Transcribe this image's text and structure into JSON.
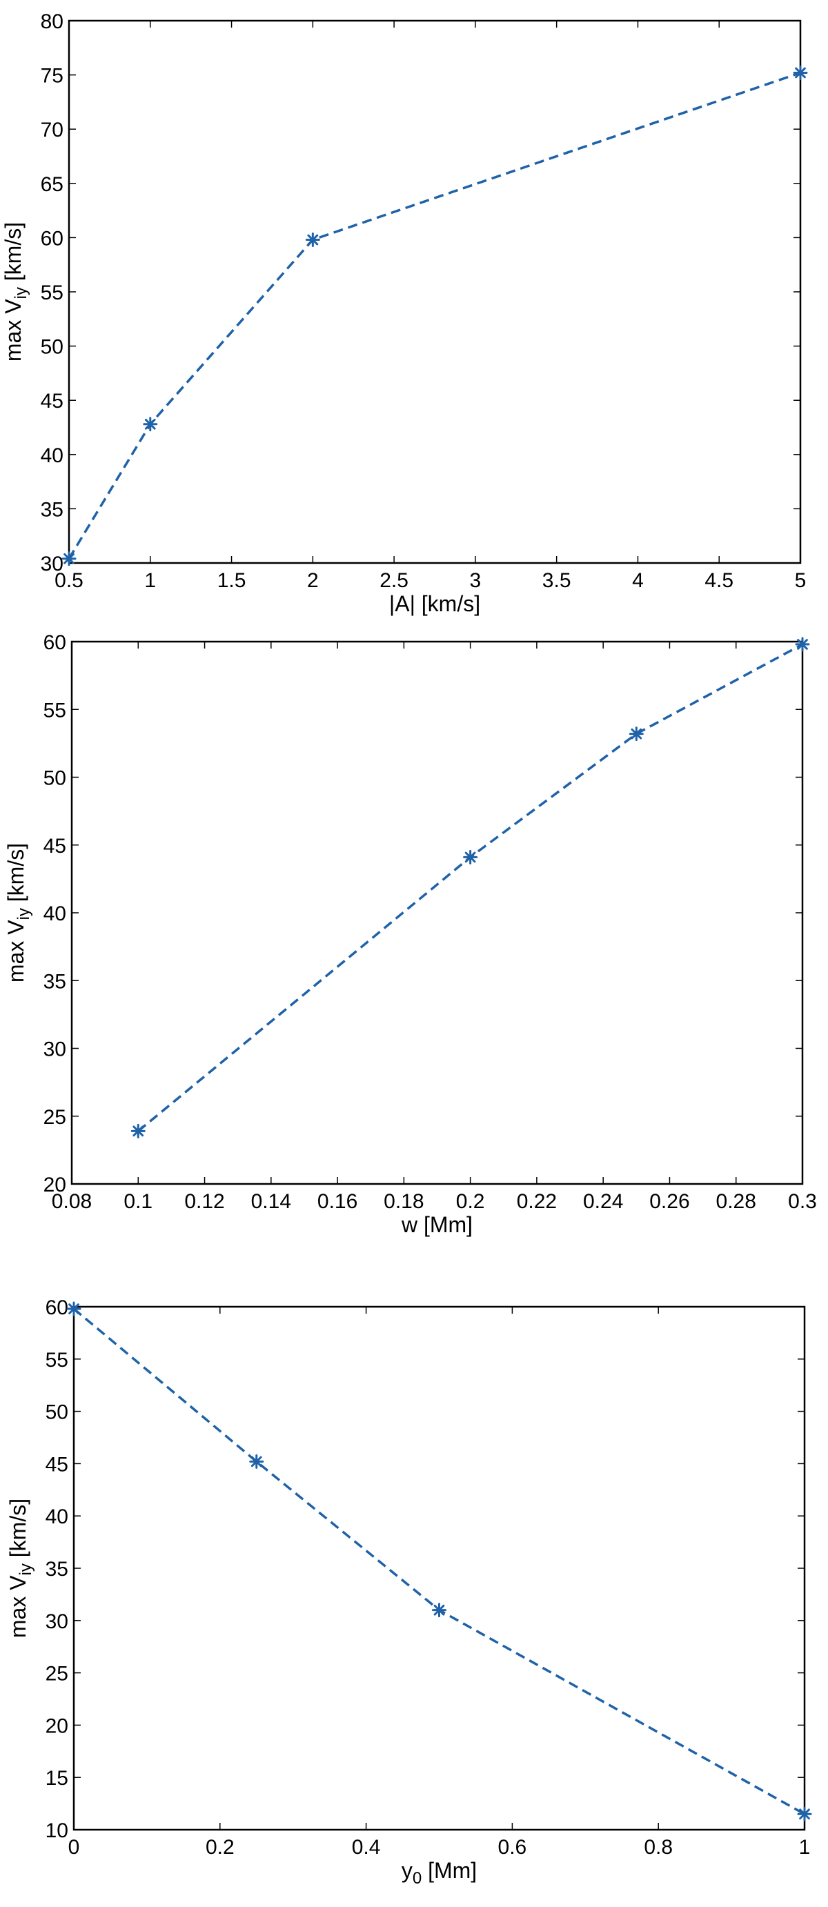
{
  "chart_data": [
    {
      "type": "line",
      "title": "",
      "xlabel": "|A| [km/s]",
      "ylabel_parts": [
        "max V",
        "iy",
        " [km/s]"
      ],
      "xlim": [
        0.5,
        5
      ],
      "ylim": [
        30,
        80
      ],
      "xticks": [
        0.5,
        1,
        1.5,
        2,
        2.5,
        3,
        3.5,
        4,
        4.5,
        5
      ],
      "yticks": [
        30,
        35,
        40,
        45,
        50,
        55,
        60,
        65,
        70,
        75,
        80
      ],
      "grid": false,
      "series": [
        {
          "x": [
            0.5,
            1,
            2,
            5
          ],
          "y": [
            30.4,
            42.8,
            59.8,
            75.2
          ],
          "color": "#1f62a8",
          "marker": "asterisk",
          "linestyle": "dashed"
        }
      ]
    },
    {
      "type": "line",
      "title": "",
      "xlabel": "w [Mm]",
      "ylabel_parts": [
        "max V",
        "iy",
        " [km/s]"
      ],
      "xlim": [
        0.08,
        0.3
      ],
      "ylim": [
        20,
        60
      ],
      "xticks": [
        0.08,
        0.1,
        0.12,
        0.14,
        0.16,
        0.18,
        0.2,
        0.22,
        0.24,
        0.26,
        0.28,
        0.3
      ],
      "yticks": [
        20,
        25,
        30,
        35,
        40,
        45,
        50,
        55,
        60
      ],
      "grid": false,
      "series": [
        {
          "x": [
            0.1,
            0.2,
            0.25,
            0.3
          ],
          "y": [
            23.9,
            44.1,
            53.2,
            59.8
          ],
          "color": "#1f62a8",
          "marker": "asterisk",
          "linestyle": "dashed"
        }
      ]
    },
    {
      "type": "line",
      "title": "",
      "xlabel_parts": [
        "y",
        "0",
        " [Mm]"
      ],
      "ylabel_parts": [
        "max V",
        "iy",
        " [km/s]"
      ],
      "xlim": [
        0,
        1
      ],
      "ylim": [
        10,
        60
      ],
      "xticks": [
        0,
        0.2,
        0.4,
        0.6,
        0.8,
        1
      ],
      "yticks": [
        10,
        15,
        20,
        25,
        30,
        35,
        40,
        45,
        50,
        55,
        60
      ],
      "grid": false,
      "series": [
        {
          "x": [
            0,
            0.25,
            0.5,
            1
          ],
          "y": [
            59.8,
            45.2,
            31.0,
            11.5
          ],
          "color": "#1f62a8",
          "marker": "asterisk",
          "linestyle": "dashed"
        }
      ]
    }
  ]
}
